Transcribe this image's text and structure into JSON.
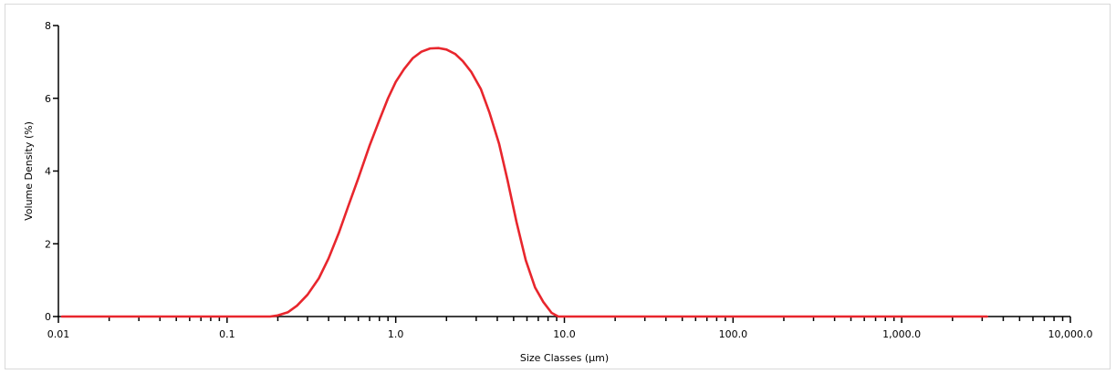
{
  "chart_data": {
    "type": "line",
    "title": "",
    "xlabel": "Size Classes (μm)",
    "ylabel": "Volume Density (%)",
    "xscale": "log",
    "xlim": [
      0.01,
      10000
    ],
    "ylim": [
      0,
      8
    ],
    "grid": false,
    "legend": "none",
    "x_ticks": [
      {
        "value": 0.01,
        "label": "0.01"
      },
      {
        "value": 0.1,
        "label": "0.1"
      },
      {
        "value": 1,
        "label": "1.0"
      },
      {
        "value": 10,
        "label": "10.0"
      },
      {
        "value": 100,
        "label": "100.0"
      },
      {
        "value": 1000,
        "label": "1,000.0"
      },
      {
        "value": 10000,
        "label": "10,000.0"
      }
    ],
    "y_ticks": [
      {
        "value": 0,
        "label": "0"
      },
      {
        "value": 2,
        "label": "2"
      },
      {
        "value": 4,
        "label": "4"
      },
      {
        "value": 6,
        "label": "6"
      },
      {
        "value": 8,
        "label": "8"
      }
    ],
    "series": [
      {
        "color": "#e8262d",
        "points": [
          [
            0.0105,
            0
          ],
          [
            0.05,
            0
          ],
          [
            0.18,
            0
          ],
          [
            0.2,
            0.03
          ],
          [
            0.23,
            0.12
          ],
          [
            0.26,
            0.3
          ],
          [
            0.3,
            0.6
          ],
          [
            0.35,
            1.05
          ],
          [
            0.4,
            1.6
          ],
          [
            0.46,
            2.3
          ],
          [
            0.52,
            3.0
          ],
          [
            0.6,
            3.8
          ],
          [
            0.7,
            4.7
          ],
          [
            0.8,
            5.4
          ],
          [
            0.9,
            6.0
          ],
          [
            1.0,
            6.45
          ],
          [
            1.12,
            6.8
          ],
          [
            1.26,
            7.1
          ],
          [
            1.42,
            7.28
          ],
          [
            1.6,
            7.37
          ],
          [
            1.8,
            7.38
          ],
          [
            2.0,
            7.34
          ],
          [
            2.25,
            7.22
          ],
          [
            2.5,
            7.02
          ],
          [
            2.8,
            6.73
          ],
          [
            3.2,
            6.25
          ],
          [
            3.6,
            5.6
          ],
          [
            4.1,
            4.75
          ],
          [
            4.6,
            3.75
          ],
          [
            5.2,
            2.6
          ],
          [
            5.9,
            1.55
          ],
          [
            6.7,
            0.8
          ],
          [
            7.5,
            0.4
          ],
          [
            8.4,
            0.1
          ],
          [
            9.2,
            0
          ],
          [
            100,
            0
          ],
          [
            1000,
            0
          ],
          [
            3200,
            0
          ]
        ]
      }
    ]
  }
}
